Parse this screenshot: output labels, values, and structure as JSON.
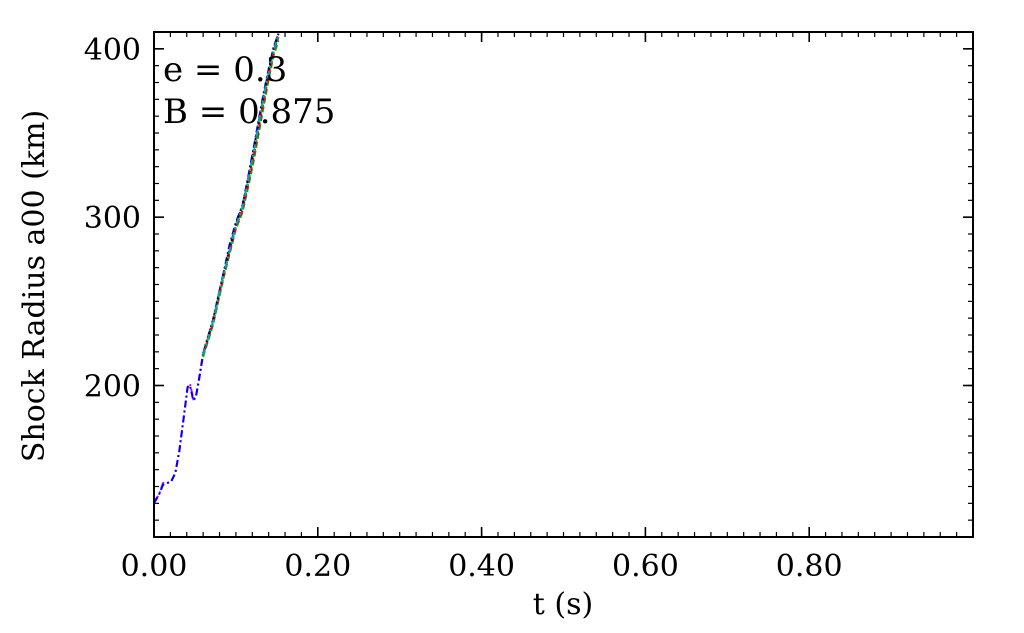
{
  "chart_data": {
    "type": "line",
    "title": "",
    "xlabel": "t (s)",
    "ylabel": "Shock Radius a00 (km)",
    "xlim": [
      0.0,
      1.0
    ],
    "ylim": [
      110,
      410
    ],
    "x_ticks": [
      {
        "value": 0.0,
        "label": "0.00"
      },
      {
        "value": 0.2,
        "label": "0.20"
      },
      {
        "value": 0.4,
        "label": "0.40"
      },
      {
        "value": 0.6,
        "label": "0.60"
      },
      {
        "value": 0.8,
        "label": "0.80"
      }
    ],
    "y_ticks": [
      {
        "value": 200,
        "label": "200"
      },
      {
        "value": 300,
        "label": "300"
      },
      {
        "value": 400,
        "label": "400"
      }
    ],
    "x_minor_step": 0.02,
    "y_minor_step": 10,
    "grid": false,
    "annotations": [
      "e = 0.3",
      "B = 0.875"
    ],
    "series": [
      {
        "color": "#cc00cc",
        "dash": "dashdot",
        "x": [
          0.0,
          0.006,
          0.011,
          0.016,
          0.021,
          0.026,
          0.031,
          0.036,
          0.041,
          0.044,
          0.048,
          0.051,
          0.055,
          0.06,
          0.066,
          0.072,
          0.078,
          0.085,
          0.092,
          0.1,
          0.108,
          0.115,
          0.122,
          0.128,
          0.134,
          0.14,
          0.146,
          0.152
        ],
        "y": [
          131,
          135,
          142,
          142,
          143,
          148,
          162,
          180,
          199,
          201,
          192,
          193,
          203,
          218,
          228,
          238,
          251,
          266,
          282,
          296,
          306,
          322,
          340,
          356,
          372,
          386,
          400,
          408
        ]
      },
      {
        "color": "#0000ff",
        "dash": "dashdot",
        "x": [
          0.0,
          0.006,
          0.011,
          0.016,
          0.021,
          0.026,
          0.031,
          0.036,
          0.041,
          0.044,
          0.048,
          0.051,
          0.055,
          0.06,
          0.066,
          0.072,
          0.078,
          0.085,
          0.092,
          0.1,
          0.108,
          0.115,
          0.122,
          0.128,
          0.134,
          0.14,
          0.146,
          0.152
        ],
        "y": [
          130,
          135,
          141,
          142,
          143,
          148,
          161,
          180,
          199,
          200,
          191,
          193,
          204,
          219,
          229,
          239,
          252,
          267,
          283,
          297,
          307,
          324,
          342,
          358,
          374,
          388,
          401,
          409
        ]
      },
      {
        "color": "#00aa00",
        "dash": "dash",
        "x": [
          0.06,
          0.072,
          0.085,
          0.1,
          0.108,
          0.115,
          0.122,
          0.128,
          0.134,
          0.14,
          0.146,
          0.152
        ],
        "y": [
          217,
          236,
          264,
          293,
          303,
          318,
          334,
          350,
          366,
          382,
          396,
          405
        ]
      },
      {
        "color": "#ff0000",
        "dash": "dash",
        "x": [
          0.06,
          0.072,
          0.085,
          0.1,
          0.108,
          0.115,
          0.122,
          0.128,
          0.134,
          0.14,
          0.146,
          0.152
        ],
        "y": [
          218,
          237,
          265,
          294,
          304,
          320,
          337,
          353,
          369,
          384,
          398,
          407
        ]
      },
      {
        "color": "#000000",
        "dash": "dot",
        "x": [
          0.06,
          0.072,
          0.085,
          0.1,
          0.108,
          0.115,
          0.122,
          0.128,
          0.134,
          0.14,
          0.146,
          0.152
        ],
        "y": [
          219,
          239,
          267,
          296,
          307,
          323,
          341,
          357,
          373,
          387,
          400,
          409
        ]
      },
      {
        "color": "#00aaaa",
        "dash": "dashdot",
        "x": [
          0.06,
          0.072,
          0.085,
          0.1,
          0.108,
          0.115,
          0.122,
          0.128,
          0.134,
          0.14,
          0.146,
          0.152
        ],
        "y": [
          218,
          238,
          266,
          295,
          306,
          322,
          339,
          356,
          372,
          386,
          399,
          408
        ]
      }
    ]
  }
}
